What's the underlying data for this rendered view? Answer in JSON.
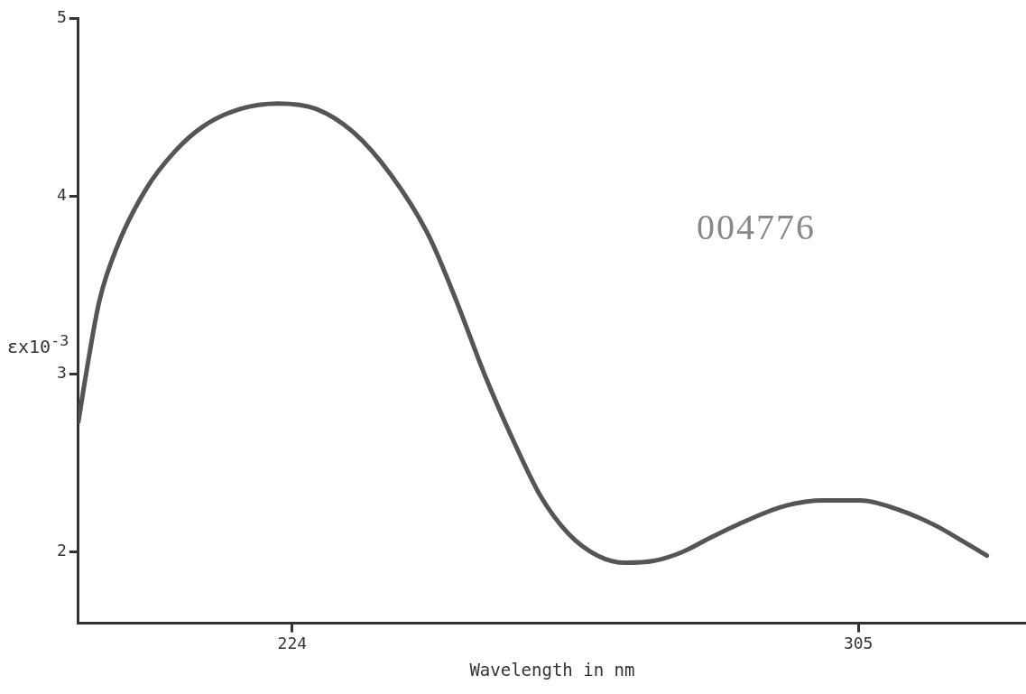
{
  "chart_data": {
    "type": "line",
    "xlabel": "Wavelength in nm",
    "ylabel": "εx10$^{-3}$",
    "annotations": [
      "004776"
    ],
    "xlim": [
      193.4,
      329
    ],
    "xticks": [
      224,
      305
    ],
    "ylim": [
      1.6,
      5
    ],
    "yticks": [
      2,
      3,
      4,
      5
    ],
    "grid": false,
    "legend": false,
    "marker": "none",
    "line_style": "solid",
    "series": [
      {
        "color": "#555555",
        "x": [
          193.4,
          194.5,
          196.4,
          199.1,
          203.1,
          207.2,
          211.2,
          216.6,
          222.0,
          227.4,
          232.7,
          238.1,
          243.5,
          247.5,
          251.5,
          255.6,
          259.6,
          263.6,
          267.7,
          271.7,
          275.7,
          279.8,
          283.8,
          289.2,
          294.6,
          300.0,
          305.3,
          310.6,
          316.0,
          320.0,
          323.4
        ],
        "values": [
          2.73,
          3.0,
          3.41,
          3.73,
          4.04,
          4.25,
          4.39,
          4.49,
          4.52,
          4.49,
          4.36,
          4.12,
          3.78,
          3.41,
          3.0,
          2.63,
          2.31,
          2.1,
          1.98,
          1.94,
          1.95,
          2.0,
          2.08,
          2.18,
          2.26,
          2.29,
          2.29,
          2.24,
          2.15,
          2.06,
          1.98
        ]
      }
    ]
  }
}
